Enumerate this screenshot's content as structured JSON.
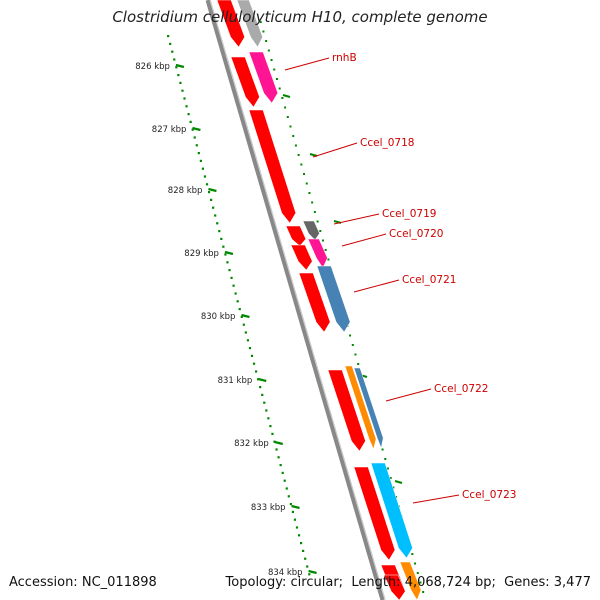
{
  "title": "Clostridium cellulolyticum H10, complete genome",
  "footer": {
    "accession_label": "Accession:",
    "accession": "NC_011898",
    "topology_label": "Topology:",
    "topology": "circular",
    "length_label": "Length:",
    "length": "4,068,724 bp",
    "genes_label": "Genes:",
    "genes": "3,477"
  },
  "ruler": {
    "ticks": [
      "826 kbp",
      "827 kbp",
      "828 kbp",
      "829 kbp",
      "830 kbp",
      "831 kbp",
      "832 kbp",
      "833 kbp",
      "834 kbp"
    ]
  },
  "features": [
    {
      "strand": "forward",
      "color": "#ff0000",
      "ref": 0
    },
    {
      "strand": "forward",
      "color": "#ff0000",
      "ref": 1
    },
    {
      "strand": "forward",
      "color": "#ff0000",
      "ref": 2
    },
    {
      "strand": "forward",
      "color": "#ff0000",
      "ref": 3
    },
    {
      "strand": "forward",
      "color": "#ff0000",
      "ref": 4
    },
    {
      "strand": "forward",
      "color": "#ff0000",
      "ref": 5
    },
    {
      "strand": "forward",
      "color": "#ff0000",
      "ref": 6
    },
    {
      "strand": "forward",
      "color": "#ff0000",
      "ref": 7
    },
    {
      "strand": "forward",
      "color": "#ff0000",
      "ref": 8
    },
    {
      "strand": "forward",
      "color": "#ff0000",
      "ref": 9
    },
    {
      "strand": "reverse",
      "color": "#aaaaaa",
      "ref": 10
    },
    {
      "strand": "reverse",
      "color": "#ff1493",
      "ref": 11
    },
    {
      "strand": "reverse",
      "color": "#666666",
      "ref": 12
    },
    {
      "strand": "reverse",
      "color": "#ff1493",
      "ref": 13
    },
    {
      "strand": "reverse",
      "color": "#4682b4",
      "ref": 14
    },
    {
      "strand": "reverse",
      "color": "#ff8c00",
      "ref": 15
    },
    {
      "strand": "reverse",
      "color": "#4682b4",
      "ref": 16
    },
    {
      "strand": "reverse",
      "color": "#00bfff",
      "ref": 17
    },
    {
      "strand": "reverse",
      "color": "#ff8c00",
      "ref": 18
    }
  ],
  "labels": [
    "rnhB",
    "Ccel_0718",
    "Ccel_0719",
    "Ccel_0720",
    "Ccel_0721",
    "Ccel_0722",
    "Ccel_0723"
  ],
  "colors": {
    "backbone": "#888888",
    "ruler_dots": "#008800",
    "label_text": "#cc0000",
    "label_line": "#cc0000"
  }
}
